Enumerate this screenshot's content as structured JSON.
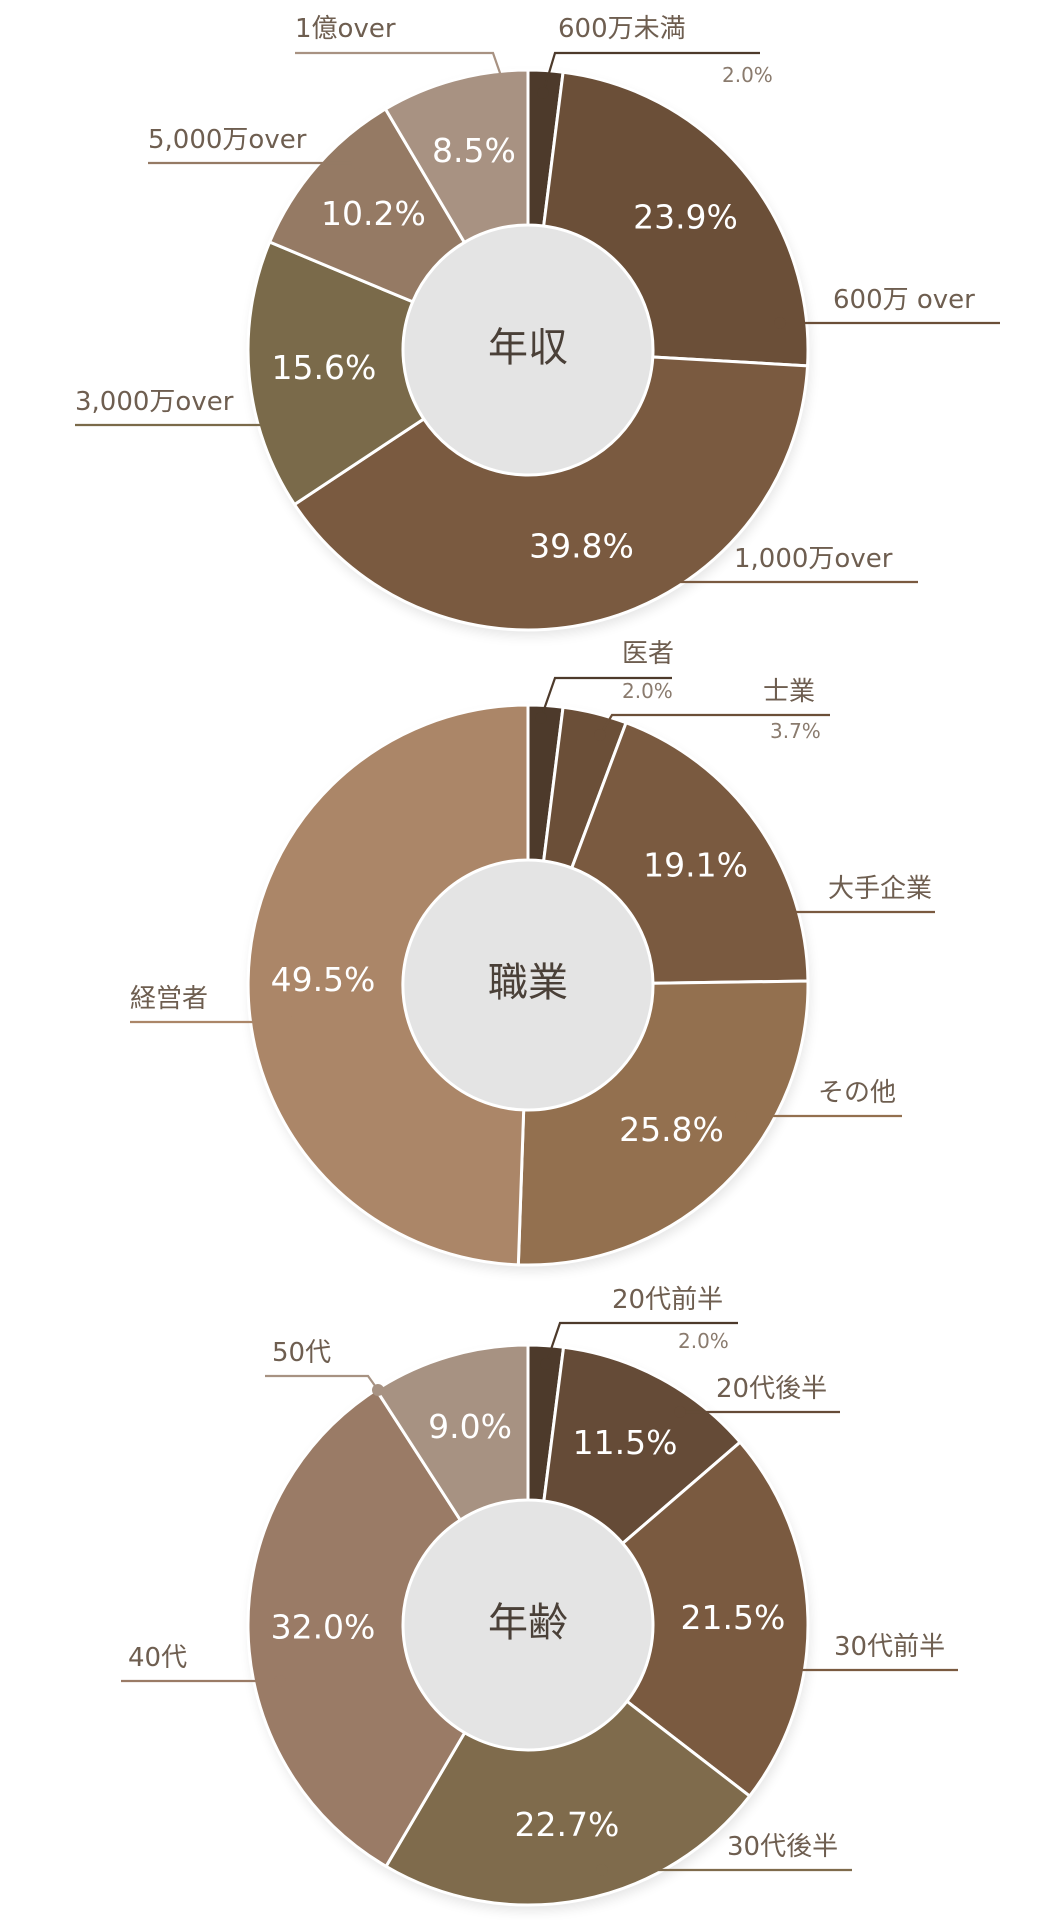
{
  "chart_data": [
    {
      "type": "pie",
      "title": "年収",
      "slices": [
        {
          "label": "600万未満",
          "value": 2.0,
          "pct_label": "2.0%",
          "color": "#4d3a2b"
        },
        {
          "label": "600万 over",
          "value": 23.9,
          "pct_label": "23.9%",
          "color": "#6b4f38"
        },
        {
          "label": "1,000万over",
          "value": 39.8,
          "pct_label": "39.8%",
          "color": "#7a5a40"
        },
        {
          "label": "3,000万over",
          "value": 15.6,
          "pct_label": "15.6%",
          "color": "#7a6a4a"
        },
        {
          "label": "5,000万over",
          "value": 10.2,
          "pct_label": "10.2%",
          "color": "#957a64"
        },
        {
          "label": "1億over",
          "value": 8.5,
          "pct_label": "8.5%",
          "color": "#a89282"
        }
      ]
    },
    {
      "type": "pie",
      "title": "職業",
      "slices": [
        {
          "label": "医者",
          "value": 2.0,
          "pct_label": "2.0%",
          "color": "#4d3a2b"
        },
        {
          "label": "士業",
          "value": 3.7,
          "pct_label": "3.7%",
          "color": "#6b4f38"
        },
        {
          "label": "大手企業",
          "value": 19.1,
          "pct_label": "19.1%",
          "color": "#7a5a40"
        },
        {
          "label": "その他",
          "value": 25.8,
          "pct_label": "25.8%",
          "color": "#93704f"
        },
        {
          "label": "経営者",
          "value": 49.5,
          "pct_label": "49.5%",
          "color": "#ab8668"
        }
      ]
    },
    {
      "type": "pie",
      "title": "年齢",
      "slices": [
        {
          "label": "20代前半",
          "value": 2.0,
          "pct_label": "2.0%",
          "color": "#4d3a2b"
        },
        {
          "label": "20代後半",
          "value": 11.5,
          "pct_label": "11.5%",
          "color": "#654b37"
        },
        {
          "label": "30代前半",
          "value": 21.5,
          "pct_label": "21.5%",
          "color": "#7a5a40"
        },
        {
          "label": "30代後半",
          "value": 22.7,
          "pct_label": "22.7%",
          "color": "#7f6b4c"
        },
        {
          "label": "40代",
          "value": 32.0,
          "pct_label": "32.0%",
          "color": "#9a7b66"
        },
        {
          "label": "50代",
          "value": 9.0,
          "pct_label": "9.0%",
          "color": "#a79282"
        }
      ]
    }
  ]
}
